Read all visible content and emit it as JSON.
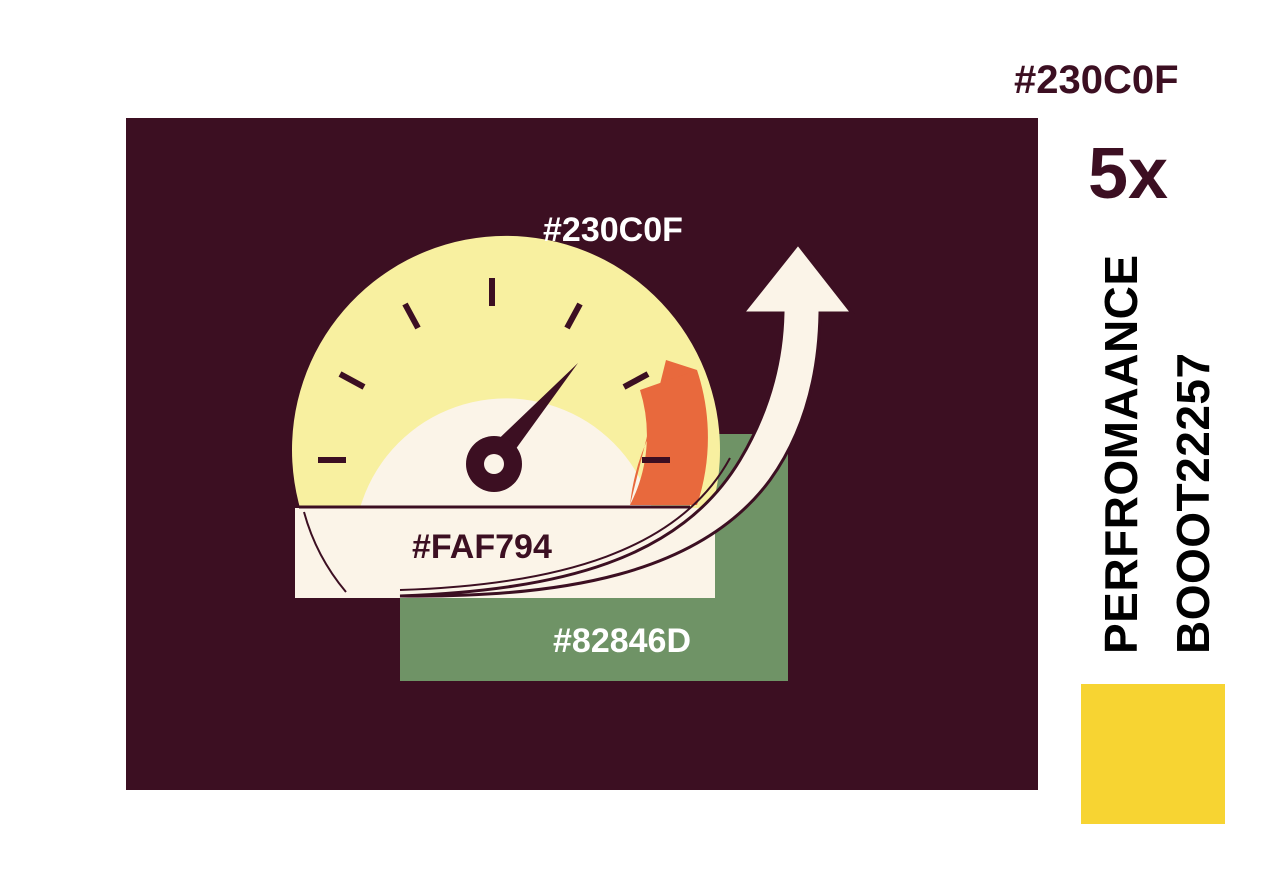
{
  "header": {
    "color_code": "#230C0F",
    "multiplier": "5x"
  },
  "side_text": {
    "line1": "PERFROMAANCE",
    "line2": "BOOOT22257"
  },
  "illustration": {
    "top_label": "#230C0F",
    "gauge_label": "#FAF794",
    "green_label": "#82846D",
    "gauge_icon": "speedometer-icon",
    "arrow_icon": "upward-arrow-icon"
  },
  "colors": {
    "panel_bg": "#3c0f22",
    "gauge_outer": "#f8f0a0",
    "gauge_inner": "#fbf4e8",
    "gauge_red": "#e8693d",
    "green_block": "#6f9366",
    "accent_yellow": "#f7d432",
    "arrow": "#fbf4e8"
  }
}
